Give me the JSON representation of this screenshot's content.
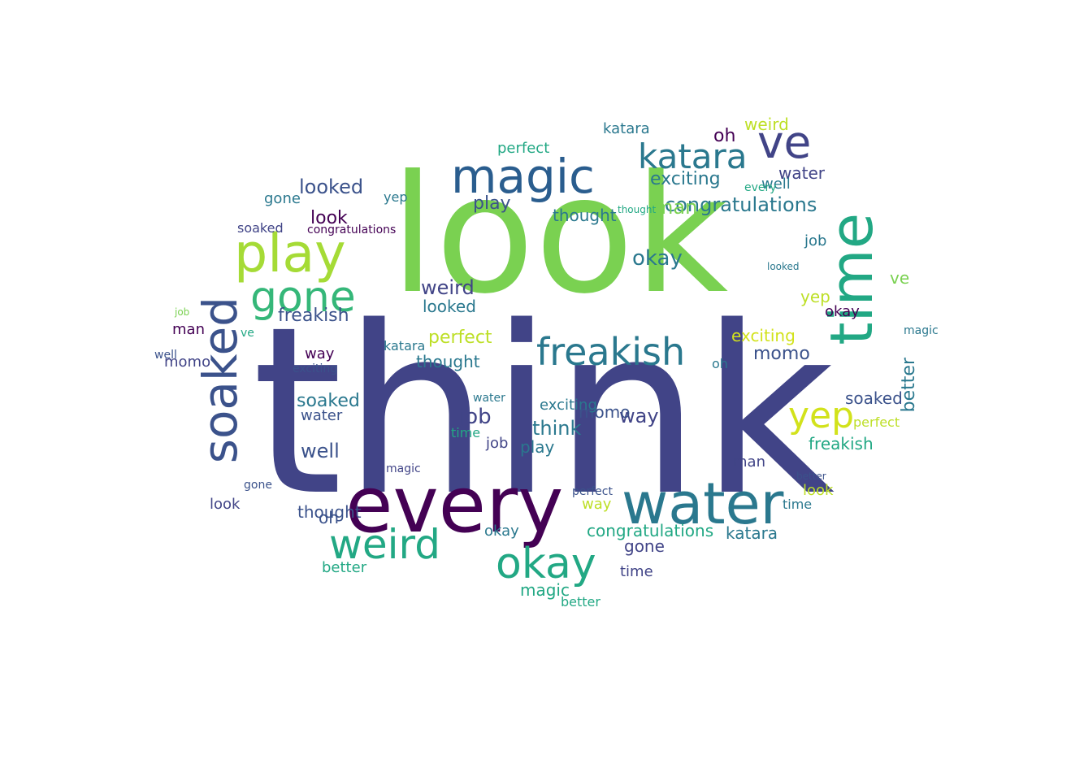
{
  "palette": {
    "dark_purple": "#440154",
    "indigo": "#414487",
    "blue": "#2a788e",
    "teal": "#22a884",
    "green": "#7ad151",
    "yellow_green": "#bddf26",
    "yellow": "#d2e21b"
  },
  "words": [
    {
      "text": "think"
    },
    {
      "text": "look"
    },
    {
      "text": "every"
    },
    {
      "text": "water"
    },
    {
      "text": "time"
    },
    {
      "text": "magic"
    },
    {
      "text": "play"
    },
    {
      "text": "soaked"
    },
    {
      "text": "ve"
    },
    {
      "text": "katara"
    },
    {
      "text": "weird"
    },
    {
      "text": "okay"
    },
    {
      "text": "gone"
    },
    {
      "text": "freakish"
    },
    {
      "text": "yep"
    },
    {
      "text": "congratulations"
    },
    {
      "text": "looked"
    },
    {
      "text": "exciting"
    },
    {
      "text": "momo"
    },
    {
      "text": "perfect"
    },
    {
      "text": "thought"
    },
    {
      "text": "well"
    },
    {
      "text": "job"
    },
    {
      "text": "man"
    },
    {
      "text": "oh"
    },
    {
      "text": "way"
    },
    {
      "text": "better"
    }
  ]
}
